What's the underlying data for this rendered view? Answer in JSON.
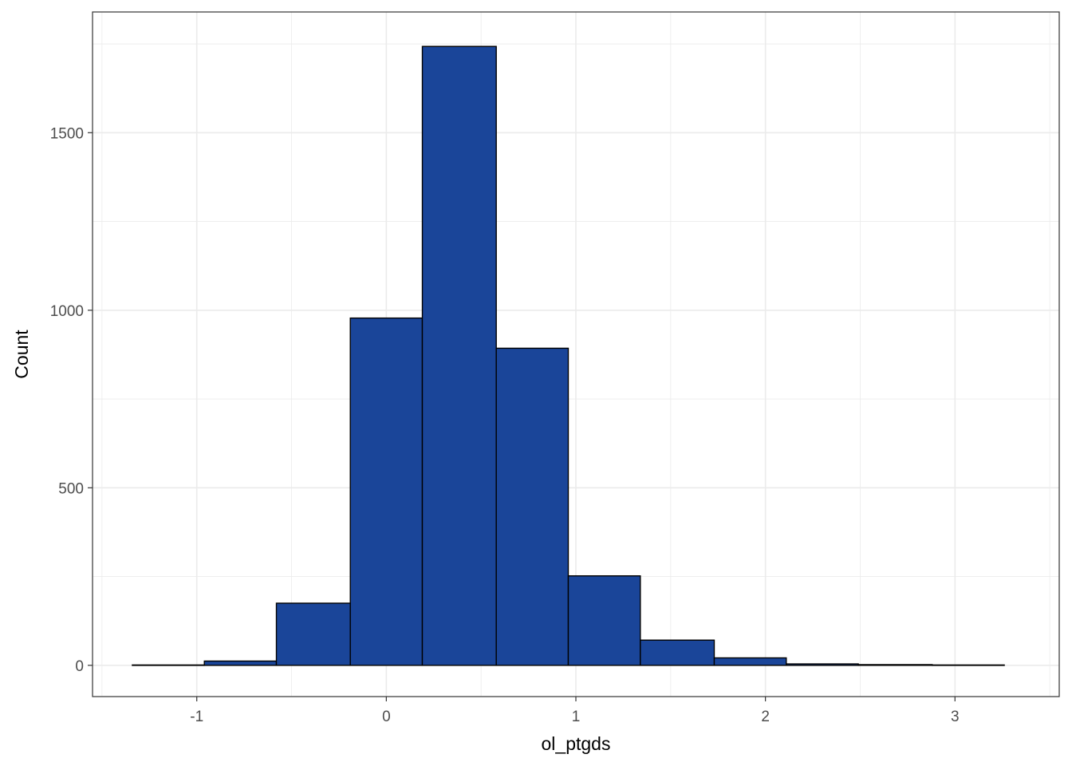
{
  "chart_data": {
    "type": "bar",
    "subtype": "histogram",
    "xlabel": "ol_ptgds",
    "ylabel": "Count",
    "xlim": [
      -1.55,
      3.55
    ],
    "ylim": [
      -88,
      1840
    ],
    "x_ticks": [
      -1,
      0,
      1,
      2,
      3
    ],
    "y_ticks": [
      0,
      500,
      1000,
      1500
    ],
    "grid": true,
    "legend": "none",
    "bins": [
      {
        "x0": -1.34,
        "x1": -0.96,
        "count": 1
      },
      {
        "x0": -0.96,
        "x1": -0.58,
        "count": 12
      },
      {
        "x0": -0.58,
        "x1": -0.19,
        "count": 175
      },
      {
        "x0": -0.19,
        "x1": 0.19,
        "count": 978
      },
      {
        "x0": 0.19,
        "x1": 0.58,
        "count": 1743
      },
      {
        "x0": 0.58,
        "x1": 0.96,
        "count": 893
      },
      {
        "x0": 0.96,
        "x1": 1.34,
        "count": 252
      },
      {
        "x0": 1.34,
        "x1": 1.73,
        "count": 71
      },
      {
        "x0": 1.73,
        "x1": 2.11,
        "count": 21
      },
      {
        "x0": 2.11,
        "x1": 2.49,
        "count": 4
      },
      {
        "x0": 2.49,
        "x1": 2.88,
        "count": 2
      },
      {
        "x0": 2.88,
        "x1": 3.26,
        "count": 1
      }
    ],
    "colors": {
      "fill": "#1A4599",
      "outline": "#000000",
      "grid": "#ebebeb",
      "panel_border": "#333333"
    }
  }
}
